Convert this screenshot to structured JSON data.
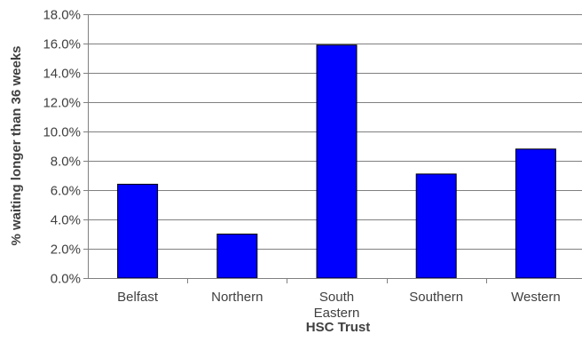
{
  "chart_data": {
    "type": "bar",
    "title": "",
    "xlabel": "HSC Trust",
    "ylabel": "% waiting longer than 36 weeks",
    "categories": [
      [
        "Belfast"
      ],
      [
        "Northern"
      ],
      [
        "South",
        "Eastern"
      ],
      [
        "Southern"
      ],
      [
        "Western"
      ]
    ],
    "values": [
      6.4,
      3.0,
      15.9,
      7.1,
      8.8
    ],
    "ylim": [
      0,
      18
    ],
    "yticks": [
      0,
      2,
      4,
      6,
      8,
      10,
      12,
      14,
      16,
      18
    ],
    "ytick_labels": [
      "0.0%",
      "2.0%",
      "4.0%",
      "6.0%",
      "8.0%",
      "10.0%",
      "12.0%",
      "14.0%",
      "16.0%",
      "18.0%"
    ],
    "grid": true,
    "legend": "none",
    "bar_color": "#0000ff",
    "bar_edge_color": "#000000"
  }
}
